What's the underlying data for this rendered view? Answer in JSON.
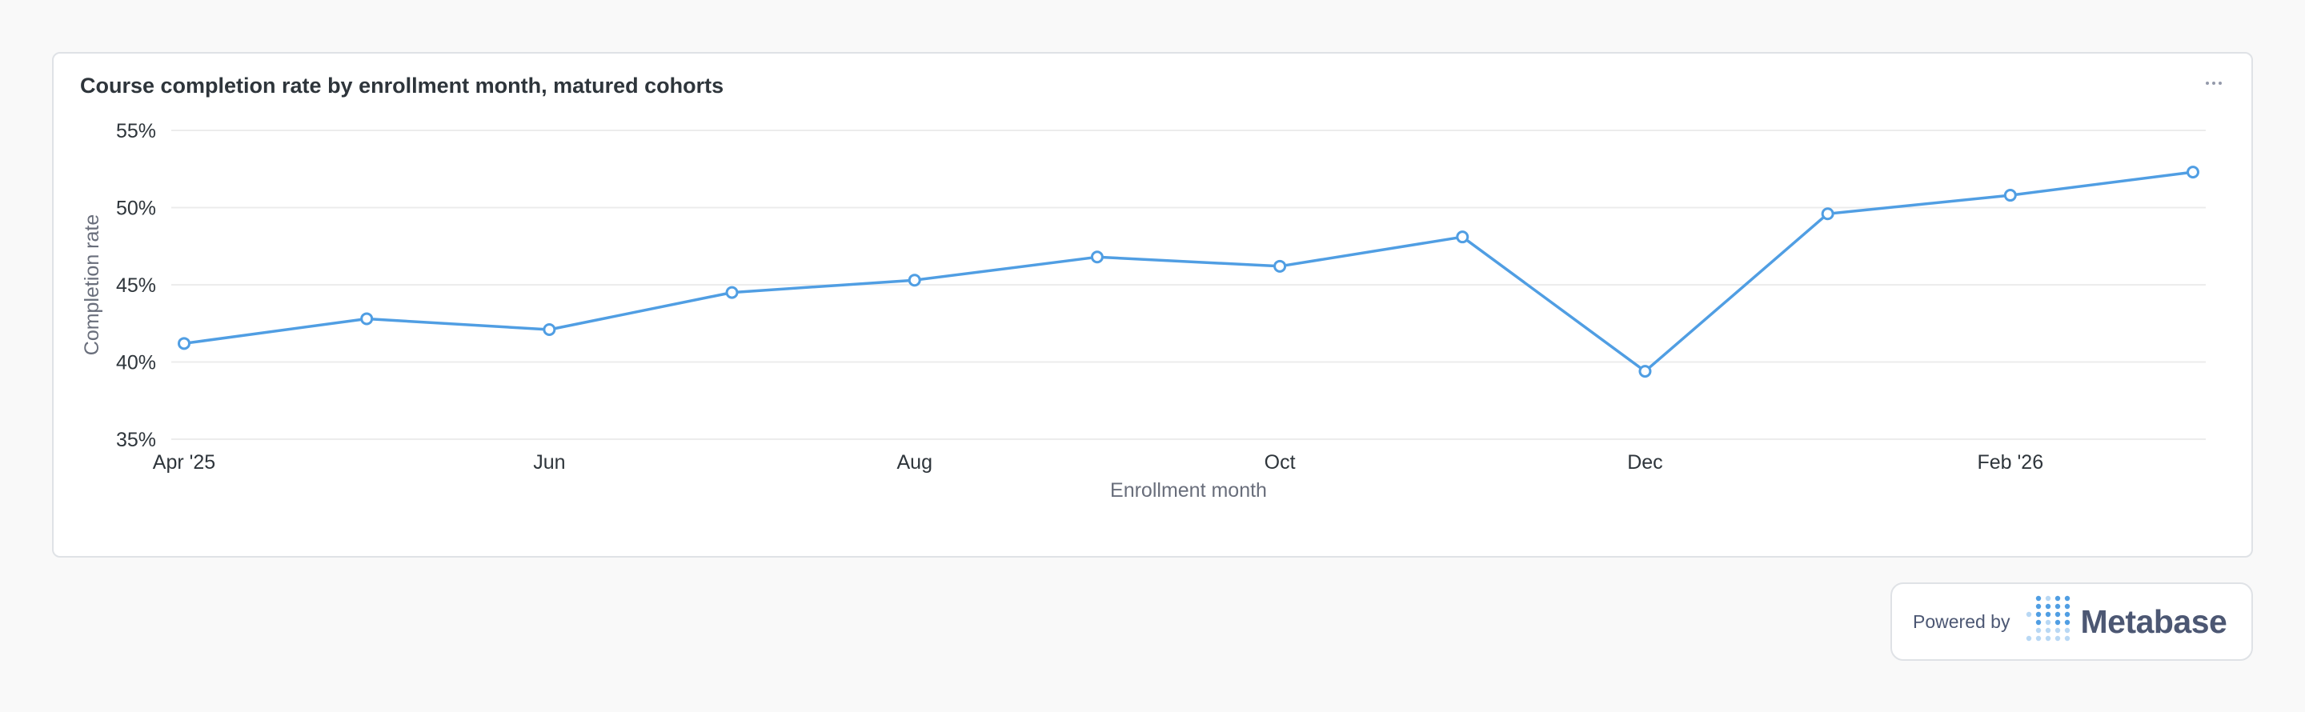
{
  "card": {
    "title": "Course completion rate by enrollment month, matured cohorts"
  },
  "badge": {
    "powered_by": "Powered by",
    "brand": "Metabase",
    "logo_icon": "metabase-logo-icon"
  },
  "colors": {
    "line": "#509ee3",
    "grid": "#ececec",
    "brand_text": "#4c5773"
  },
  "chart_data": {
    "type": "line",
    "x": [
      "Apr '25",
      "May '25",
      "Jun '25",
      "Jul '25",
      "Aug '25",
      "Sep '25",
      "Oct '25",
      "Nov '25",
      "Dec '25",
      "Jan '26",
      "Feb '26",
      "Mar '26"
    ],
    "x_tick_labels": [
      "Apr '25",
      "Jun",
      "Aug",
      "Oct",
      "Dec",
      "Feb '26"
    ],
    "x_tick_index": [
      0,
      2,
      4,
      6,
      8,
      10
    ],
    "series": [
      {
        "values": [
          41.2,
          42.8,
          42.1,
          44.5,
          45.3,
          46.8,
          46.2,
          48.1,
          39.4,
          49.6,
          50.8,
          52.3
        ]
      }
    ],
    "xlabel": "Enrollment month",
    "ylabel": "Completion rate",
    "ylim": [
      35,
      55
    ],
    "y_ticks": [
      35,
      40,
      45,
      50,
      55
    ],
    "y_tick_labels": [
      "35%",
      "40%",
      "45%",
      "50%",
      "55%"
    ],
    "grid": true,
    "legend": "none"
  }
}
